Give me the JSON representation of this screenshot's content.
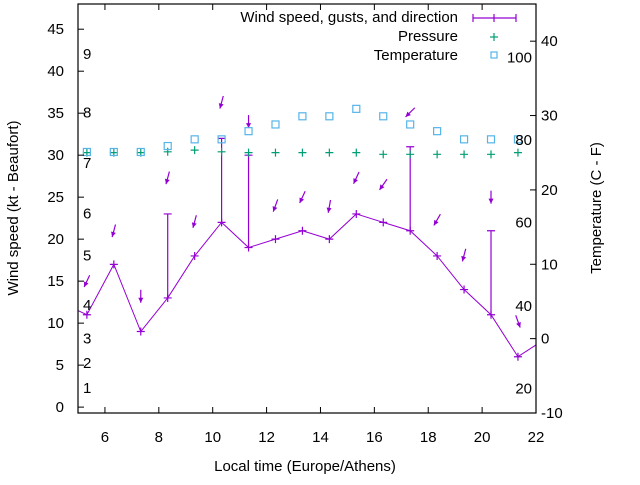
{
  "chart_data": {
    "type": "line",
    "title": "",
    "xlabel": "Local time (Europe/Athens)",
    "ylabel": "Wind speed (kt - Beaufort)",
    "y2label": "Temperature (C - F)",
    "xlim": [
      5,
      22
    ],
    "ylim": [
      -0.7,
      48
    ],
    "y2lim": [
      -10,
      45
    ],
    "xticks": [
      6,
      8,
      10,
      12,
      14,
      16,
      18,
      20,
      22
    ],
    "yticks": [
      0,
      5,
      10,
      15,
      20,
      25,
      30,
      35,
      40,
      45
    ],
    "y2ticks": [
      -10,
      0,
      10,
      20,
      30,
      40
    ],
    "grid": false,
    "legend_position": "top-right",
    "legend": [
      "Wind speed, gusts, and direction",
      "Pressure",
      "Temperature"
    ],
    "colors": {
      "wind": "#9400d3",
      "pressure": "#009e73",
      "temperature": "#56b4e9"
    },
    "beaufort_labels": [
      {
        "label": "1",
        "kt": 1.2
      },
      {
        "label": "2",
        "kt": 4.2
      },
      {
        "label": "3",
        "kt": 7.1
      },
      {
        "label": "4",
        "kt": 11.1
      },
      {
        "label": "5",
        "kt": 17
      },
      {
        "label": "6",
        "kt": 22
      },
      {
        "label": "7",
        "kt": 28
      },
      {
        "label": "8",
        "kt": 34
      },
      {
        "label": "9",
        "kt": 41
      }
    ],
    "fahrenheit_labels": [
      {
        "label": "20",
        "c": -6.7
      },
      {
        "label": "40",
        "c": 4.4
      },
      {
        "label": "60",
        "c": 15.6
      },
      {
        "label": "80",
        "c": 26.7
      },
      {
        "label": "100",
        "c": 37.8
      }
    ],
    "wind_edge": {
      "start": [
        5,
        11.5
      ],
      "end": [
        22,
        7.4
      ]
    },
    "x": [
      5.33,
      6.33,
      7.33,
      8.33,
      9.33,
      10.33,
      11.33,
      12.33,
      13.33,
      14.33,
      15.33,
      16.33,
      17.33,
      18.33,
      19.33,
      20.33,
      21.33
    ],
    "series": [
      {
        "name": "Wind speed",
        "axis": "y",
        "values": [
          11,
          17,
          9,
          13,
          18,
          22,
          19,
          20,
          21,
          20,
          23,
          22,
          21,
          18,
          14,
          11,
          6
        ]
      },
      {
        "name": "Gusts",
        "axis": "y",
        "values": [
          null,
          null,
          null,
          23,
          null,
          32,
          30,
          null,
          null,
          null,
          null,
          null,
          31,
          null,
          null,
          21,
          null
        ]
      },
      {
        "name": "Direction arrow level",
        "axis": "y",
        "values": [
          15,
          21,
          13.2,
          27.3,
          22.1,
          36.3,
          34,
          24,
          25,
          23.9,
          27.3,
          26.5,
          35.1,
          22.3,
          18.1,
          25,
          10.2
        ]
      },
      {
        "name": "Direction from (deg)",
        "axis": "none",
        "values": [
          25,
          15,
          0,
          15,
          15,
          15,
          0,
          20,
          25,
          10,
          25,
          35,
          45,
          30,
          15,
          0,
          340
        ]
      },
      {
        "name": "Pressure",
        "axis": "y",
        "values": [
          30.3,
          30.3,
          30.3,
          30.4,
          30.6,
          30.4,
          30.3,
          30.3,
          30.3,
          30.3,
          30.3,
          30.1,
          30.1,
          30.1,
          30.1,
          30.1,
          30.3
        ]
      },
      {
        "name": "Temperature",
        "axis": "y2",
        "values": [
          25.1,
          25.1,
          25.1,
          25.9,
          26.8,
          26.8,
          27.9,
          28.8,
          29.9,
          29.9,
          30.9,
          29.9,
          28.8,
          27.9,
          26.8,
          26.8,
          26.8
        ]
      }
    ]
  }
}
